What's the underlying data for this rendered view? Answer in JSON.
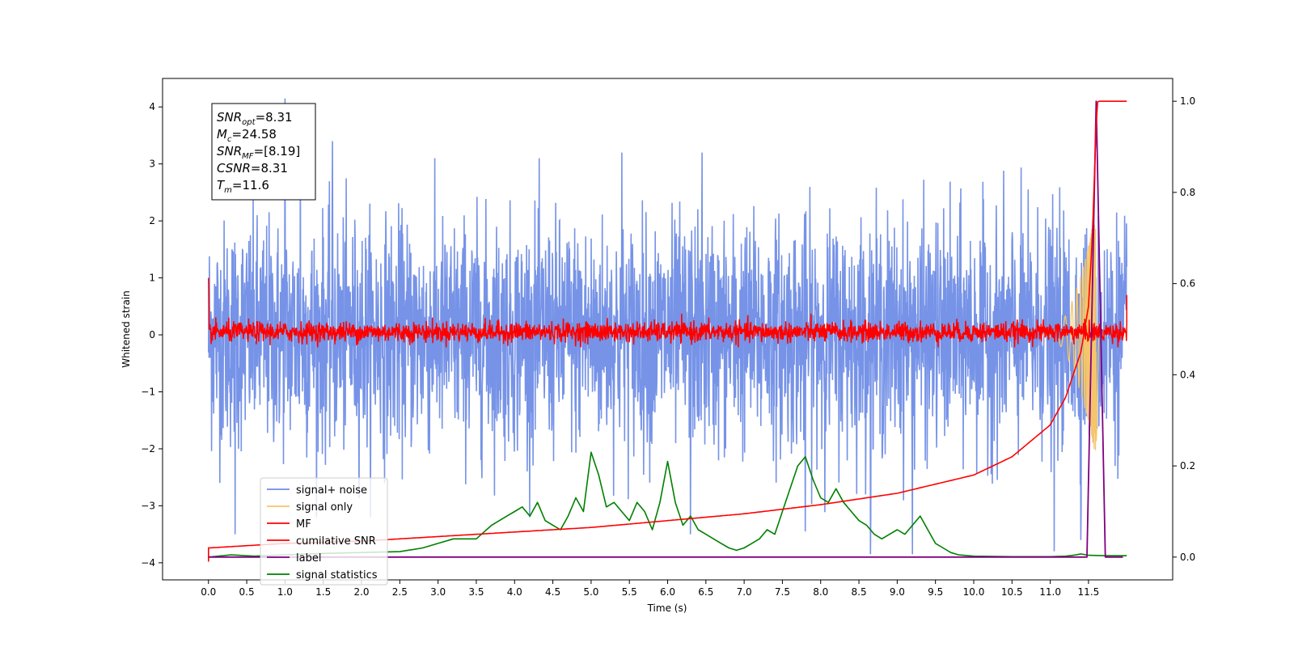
{
  "chart_data": {
    "type": "line",
    "title": "",
    "xlabel": "Time (s)",
    "ylabel": "Whitened strain",
    "y2label": "",
    "xlim": [
      -0.6,
      12.6
    ],
    "ylim": [
      -4.3,
      4.5
    ],
    "y2lim": [
      -0.05,
      1.05
    ],
    "x_ticks": [
      0.0,
      0.5,
      1.0,
      1.5,
      2.0,
      2.5,
      3.0,
      3.5,
      4.0,
      4.5,
      5.0,
      5.5,
      6.0,
      6.5,
      7.0,
      7.5,
      8.0,
      8.5,
      9.0,
      9.5,
      10.0,
      10.5,
      11.0,
      11.5
    ],
    "x_tick_labels": [
      "0.0",
      "0.5",
      "1.0",
      "1.5",
      "2.0",
      "2.5",
      "3.0",
      "3.5",
      "4.0",
      "4.5",
      "5.0",
      "5.5",
      "6.0",
      "6.5",
      "7.0",
      "7.5",
      "8.0",
      "8.5",
      "9.0",
      "9.5",
      "10.0",
      "10.5",
      "11.0",
      "11.5"
    ],
    "y_ticks": [
      -4,
      -3,
      -2,
      -1,
      0,
      1,
      2,
      3,
      4
    ],
    "y_tick_labels": [
      "−4",
      "−3",
      "−2",
      "−1",
      "0",
      "1",
      "2",
      "3",
      "4"
    ],
    "y2_ticks": [
      0.0,
      0.2,
      0.4,
      0.6,
      0.8,
      1.0
    ],
    "y2_tick_labels": [
      "0.0",
      "0.2",
      "0.4",
      "0.6",
      "0.8",
      "1.0"
    ],
    "grid": false,
    "legend_position": "lower-left",
    "series": [
      {
        "name": "signal+ noise",
        "color": "#6f8de6",
        "axis": "left",
        "x_range": [
          0.0,
          12.0
        ],
        "level": 0.0,
        "typical_band": [
          -1.8,
          1.8
        ],
        "spikes": [
          {
            "x": 1.0,
            "y": 4.15
          },
          {
            "x": 1.2,
            "y": 3.35
          },
          {
            "x": 1.62,
            "y": 3.4
          },
          {
            "x": 5.4,
            "y": 3.2
          },
          {
            "x": 6.45,
            "y": 3.2
          },
          {
            "x": 0.35,
            "y": -3.5
          },
          {
            "x": 6.3,
            "y": -3.5
          },
          {
            "x": 7.8,
            "y": -3.45
          },
          {
            "x": 8.65,
            "y": -3.85
          },
          {
            "x": 9.2,
            "y": -3.85
          },
          {
            "x": 11.05,
            "y": -3.8
          },
          {
            "x": 11.4,
            "y": -3.6
          }
        ]
      },
      {
        "name": "signal only",
        "color": "#f5c56a",
        "axis": "left",
        "chirp_start": 10.9,
        "merger": 11.6,
        "peak_amplitude": 2.2
      },
      {
        "name": "MF",
        "color": "#ff0000",
        "axis": "left",
        "x_range": [
          0.0,
          12.0
        ],
        "level": 0.0,
        "typical_band": [
          -0.2,
          0.3
        ],
        "start_value": 1.0,
        "end_value": 0.7
      },
      {
        "name": "cumilative SNR",
        "color": "#ff0000",
        "axis": "right",
        "x": [
          0.0,
          1.0,
          2.0,
          3.0,
          4.0,
          5.0,
          6.0,
          7.0,
          8.0,
          9.0,
          10.0,
          10.5,
          11.0,
          11.2,
          11.4,
          11.5,
          11.55,
          11.6,
          11.62,
          11.65,
          12.0
        ],
        "values": [
          0.02,
          0.03,
          0.035,
          0.045,
          0.055,
          0.065,
          0.08,
          0.095,
          0.115,
          0.14,
          0.18,
          0.22,
          0.29,
          0.35,
          0.45,
          0.55,
          0.7,
          0.95,
          1.0,
          1.0,
          1.0
        ]
      },
      {
        "name": "label",
        "color": "#800080",
        "axis": "right",
        "x": [
          0.0,
          11.48,
          11.6,
          11.72,
          11.95
        ],
        "values": [
          0.0,
          0.0,
          1.0,
          0.0,
          0.0
        ]
      },
      {
        "name": "signal statistics",
        "color": "#008000",
        "axis": "right",
        "x": [
          0.0,
          0.3,
          0.6,
          1.0,
          1.5,
          2.0,
          2.5,
          2.8,
          3.0,
          3.2,
          3.5,
          3.7,
          3.9,
          4.0,
          4.1,
          4.2,
          4.3,
          4.4,
          4.5,
          4.6,
          4.7,
          4.8,
          4.9,
          5.0,
          5.1,
          5.2,
          5.3,
          5.4,
          5.5,
          5.6,
          5.7,
          5.8,
          5.9,
          6.0,
          6.1,
          6.2,
          6.3,
          6.4,
          6.5,
          6.6,
          6.7,
          6.8,
          6.9,
          7.0,
          7.1,
          7.2,
          7.3,
          7.4,
          7.5,
          7.6,
          7.7,
          7.8,
          7.9,
          8.0,
          8.1,
          8.2,
          8.3,
          8.4,
          8.5,
          8.6,
          8.7,
          8.8,
          8.9,
          9.0,
          9.1,
          9.2,
          9.3,
          9.4,
          9.5,
          9.6,
          9.7,
          9.8,
          10.0,
          10.5,
          11.0,
          11.2,
          11.3,
          11.4,
          11.5,
          11.7,
          12.0
        ],
        "values": [
          0.0,
          0.005,
          0.002,
          0.005,
          0.008,
          0.01,
          0.012,
          0.02,
          0.03,
          0.04,
          0.04,
          0.07,
          0.09,
          0.1,
          0.11,
          0.09,
          0.12,
          0.08,
          0.07,
          0.06,
          0.09,
          0.13,
          0.1,
          0.23,
          0.18,
          0.11,
          0.12,
          0.1,
          0.08,
          0.12,
          0.1,
          0.06,
          0.12,
          0.21,
          0.12,
          0.07,
          0.09,
          0.06,
          0.05,
          0.04,
          0.03,
          0.02,
          0.015,
          0.02,
          0.03,
          0.04,
          0.06,
          0.05,
          0.1,
          0.15,
          0.2,
          0.22,
          0.17,
          0.13,
          0.12,
          0.15,
          0.12,
          0.1,
          0.08,
          0.07,
          0.05,
          0.04,
          0.05,
          0.06,
          0.05,
          0.07,
          0.09,
          0.06,
          0.03,
          0.02,
          0.01,
          0.005,
          0.002,
          0.001,
          0.001,
          0.002,
          0.004,
          0.007,
          0.004,
          0.003,
          0.003
        ]
      }
    ],
    "annotation_lines": [
      {
        "label": "SNR",
        "sub": "opt",
        "value": "=8.31"
      },
      {
        "label": "M",
        "sub": "c",
        "value": "=24.58"
      },
      {
        "label": "SNR",
        "sub": "MF",
        "value": "=[8.19]"
      },
      {
        "label": "CSNR",
        "sub": "",
        "value": "=8.31"
      },
      {
        "label": "T",
        "sub": "m",
        "value": "=11.6"
      }
    ]
  }
}
